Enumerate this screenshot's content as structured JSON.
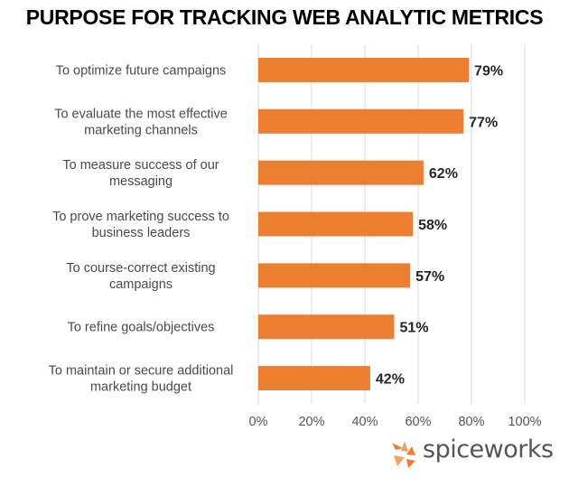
{
  "chart_data": {
    "type": "bar",
    "orientation": "horizontal",
    "title": "PURPOSE FOR TRACKING WEB ANALYTIC METRICS",
    "categories": [
      [
        "To optimize future campaigns"
      ],
      [
        "To evaluate the most effective",
        "marketing channels"
      ],
      [
        "To measure success of our",
        "messaging"
      ],
      [
        "To prove marketing success to",
        "business leaders"
      ],
      [
        "To course-correct existing",
        "campaigns"
      ],
      [
        "To refine goals/objectives"
      ],
      [
        "To maintain or secure additional",
        "marketing budget"
      ]
    ],
    "values": [
      79,
      77,
      62,
      58,
      57,
      51,
      42
    ],
    "value_labels": [
      "79%",
      "77%",
      "62%",
      "58%",
      "57%",
      "51%",
      "42%"
    ],
    "xlim": [
      0,
      100
    ],
    "x_ticks": [
      "0%",
      "20%",
      "40%",
      "60%",
      "80%",
      "100%"
    ],
    "grid": true,
    "bar_color": "#ed7d31",
    "grid_color": "#d9d9d9"
  },
  "branding": {
    "logo_text": "spiceworks",
    "logo_color": "#ed7d31"
  }
}
